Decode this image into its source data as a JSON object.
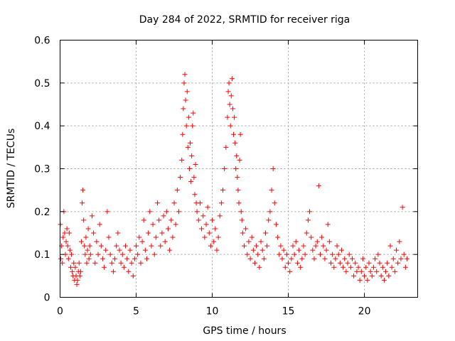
{
  "chart_data": {
    "type": "scatter",
    "title": "Day 284 of 2022, SRMTID for receiver riga",
    "xlabel": "GPS time / hours",
    "ylabel": "SRMTID / TECUs",
    "xlim": [
      0,
      23.5
    ],
    "ylim": [
      0,
      0.6
    ],
    "x_ticks": [
      0,
      5,
      10,
      15,
      20
    ],
    "x_tick_labels": [
      "0",
      "5",
      "10",
      "15",
      "20"
    ],
    "y_ticks": [
      0,
      0.1,
      0.2,
      0.3,
      0.4,
      0.5,
      0.6
    ],
    "y_tick_labels": [
      "0",
      "0.1",
      "0.2",
      "0.3",
      "0.4",
      "0.5",
      "0.6"
    ],
    "grid": true,
    "marker": "plus",
    "color": "#ff0000",
    "series": [
      {
        "name": "SRMTID",
        "x": [
          0.02,
          0.05,
          0.1,
          0.15,
          0.2,
          0.25,
          0.3,
          0.35,
          0.4,
          0.45,
          0.5,
          0.55,
          0.6,
          0.65,
          0.7,
          0.75,
          0.8,
          0.85,
          0.9,
          0.95,
          1.0,
          1.05,
          1.1,
          1.15,
          1.2,
          1.25,
          1.3,
          1.35,
          1.4,
          1.45,
          1.5,
          1.55,
          1.6,
          1.65,
          1.7,
          1.75,
          1.8,
          1.85,
          1.9,
          1.95,
          2.0,
          2.1,
          2.2,
          2.3,
          2.4,
          2.5,
          2.6,
          2.7,
          2.8,
          2.9,
          3.0,
          3.1,
          3.2,
          3.3,
          3.4,
          3.5,
          3.6,
          3.7,
          3.8,
          3.9,
          4.0,
          4.1,
          4.2,
          4.3,
          4.4,
          4.5,
          4.6,
          4.7,
          4.8,
          4.9,
          5.0,
          5.1,
          5.2,
          5.3,
          5.4,
          5.5,
          5.6,
          5.7,
          5.8,
          5.9,
          6.0,
          6.1,
          6.2,
          6.3,
          6.4,
          6.5,
          6.6,
          6.7,
          6.8,
          6.9,
          7.0,
          7.1,
          7.2,
          7.3,
          7.4,
          7.5,
          7.6,
          7.7,
          7.8,
          7.9,
          8.0,
          8.05,
          8.1,
          8.15,
          8.2,
          8.25,
          8.3,
          8.35,
          8.4,
          8.45,
          8.5,
          8.55,
          8.6,
          8.65,
          8.7,
          8.75,
          8.8,
          8.85,
          8.9,
          8.95,
          9.0,
          9.1,
          9.2,
          9.3,
          9.4,
          9.5,
          9.6,
          9.7,
          9.8,
          9.9,
          10.0,
          10.1,
          10.2,
          10.3,
          10.4,
          10.5,
          10.6,
          10.7,
          10.8,
          10.9,
          11.0,
          11.05,
          11.1,
          11.15,
          11.2,
          11.25,
          11.3,
          11.35,
          11.4,
          11.45,
          11.5,
          11.55,
          11.6,
          11.65,
          11.7,
          11.75,
          11.8,
          11.85,
          11.9,
          11.95,
          12.0,
          12.1,
          12.2,
          12.3,
          12.4,
          12.5,
          12.6,
          12.7,
          12.8,
          12.9,
          13.0,
          13.1,
          13.2,
          13.3,
          13.4,
          13.5,
          13.6,
          13.7,
          13.8,
          13.9,
          14.0,
          14.1,
          14.2,
          14.3,
          14.4,
          14.5,
          14.6,
          14.7,
          14.8,
          14.9,
          15.0,
          15.1,
          15.2,
          15.3,
          15.4,
          15.5,
          15.6,
          15.7,
          15.8,
          15.9,
          16.0,
          16.1,
          16.2,
          16.3,
          16.4,
          16.5,
          16.6,
          16.7,
          16.8,
          16.9,
          17.0,
          17.1,
          17.2,
          17.3,
          17.4,
          17.5,
          17.6,
          17.7,
          17.8,
          17.9,
          18.0,
          18.1,
          18.2,
          18.3,
          18.4,
          18.5,
          18.6,
          18.7,
          18.8,
          18.9,
          19.0,
          19.1,
          19.2,
          19.3,
          19.4,
          19.5,
          19.6,
          19.7,
          19.8,
          19.9,
          20.0,
          20.1,
          20.2,
          20.3,
          20.4,
          20.5,
          20.6,
          20.7,
          20.8,
          20.9,
          21.0,
          21.1,
          21.2,
          21.3,
          21.4,
          21.5,
          21.6,
          21.7,
          21.8,
          21.9,
          22.0,
          22.1,
          22.2,
          22.3,
          22.4,
          22.5,
          22.6,
          22.7,
          22.8
        ],
        "y": [
          0.17,
          0.09,
          0.12,
          0.08,
          0.14,
          0.2,
          0.15,
          0.1,
          0.13,
          0.16,
          0.12,
          0.09,
          0.15,
          0.11,
          0.07,
          0.1,
          0.06,
          0.05,
          0.08,
          0.04,
          0.07,
          0.05,
          0.03,
          0.04,
          0.06,
          0.08,
          0.05,
          0.06,
          0.13,
          0.22,
          0.25,
          0.18,
          0.12,
          0.1,
          0.14,
          0.08,
          0.11,
          0.16,
          0.09,
          0.12,
          0.1,
          0.19,
          0.15,
          0.08,
          0.13,
          0.1,
          0.17,
          0.12,
          0.09,
          0.07,
          0.11,
          0.2,
          0.14,
          0.1,
          0.08,
          0.06,
          0.09,
          0.12,
          0.15,
          0.11,
          0.08,
          0.1,
          0.07,
          0.12,
          0.09,
          0.06,
          0.11,
          0.08,
          0.05,
          0.09,
          0.12,
          0.1,
          0.14,
          0.08,
          0.13,
          0.18,
          0.11,
          0.09,
          0.15,
          0.2,
          0.12,
          0.17,
          0.1,
          0.14,
          0.22,
          0.18,
          0.12,
          0.15,
          0.19,
          0.13,
          0.2,
          0.16,
          0.11,
          0.18,
          0.14,
          0.22,
          0.17,
          0.25,
          0.2,
          0.28,
          0.32,
          0.38,
          0.44,
          0.5,
          0.52,
          0.46,
          0.4,
          0.48,
          0.35,
          0.42,
          0.3,
          0.36,
          0.27,
          0.33,
          0.4,
          0.43,
          0.28,
          0.24,
          0.31,
          0.22,
          0.2,
          0.18,
          0.22,
          0.16,
          0.19,
          0.14,
          0.17,
          0.21,
          0.15,
          0.12,
          0.18,
          0.13,
          0.16,
          0.11,
          0.14,
          0.19,
          0.22,
          0.25,
          0.3,
          0.35,
          0.42,
          0.48,
          0.5,
          0.45,
          0.4,
          0.47,
          0.51,
          0.44,
          0.38,
          0.42,
          0.36,
          0.3,
          0.33,
          0.28,
          0.25,
          0.22,
          0.32,
          0.38,
          0.2,
          0.18,
          0.15,
          0.12,
          0.16,
          0.1,
          0.13,
          0.09,
          0.14,
          0.11,
          0.08,
          0.12,
          0.1,
          0.07,
          0.13,
          0.11,
          0.09,
          0.15,
          0.12,
          0.18,
          0.2,
          0.25,
          0.3,
          0.22,
          0.17,
          0.14,
          0.1,
          0.12,
          0.09,
          0.11,
          0.07,
          0.1,
          0.08,
          0.06,
          0.09,
          0.12,
          0.1,
          0.13,
          0.08,
          0.11,
          0.07,
          0.09,
          0.12,
          0.1,
          0.15,
          0.18,
          0.2,
          0.14,
          0.11,
          0.09,
          0.12,
          0.13,
          0.26,
          0.1,
          0.14,
          0.12,
          0.09,
          0.11,
          0.17,
          0.13,
          0.08,
          0.1,
          0.07,
          0.09,
          0.12,
          0.1,
          0.08,
          0.11,
          0.07,
          0.09,
          0.06,
          0.08,
          0.1,
          0.07,
          0.09,
          0.05,
          0.08,
          0.06,
          0.07,
          0.04,
          0.06,
          0.09,
          0.05,
          0.07,
          0.04,
          0.08,
          0.06,
          0.05,
          0.07,
          0.09,
          0.06,
          0.1,
          0.08,
          0.05,
          0.07,
          0.04,
          0.06,
          0.08,
          0.05,
          0.12,
          0.07,
          0.09,
          0.06,
          0.11,
          0.08,
          0.13,
          0.09,
          0.21,
          0.1,
          0.07,
          0.09
        ]
      }
    ]
  }
}
